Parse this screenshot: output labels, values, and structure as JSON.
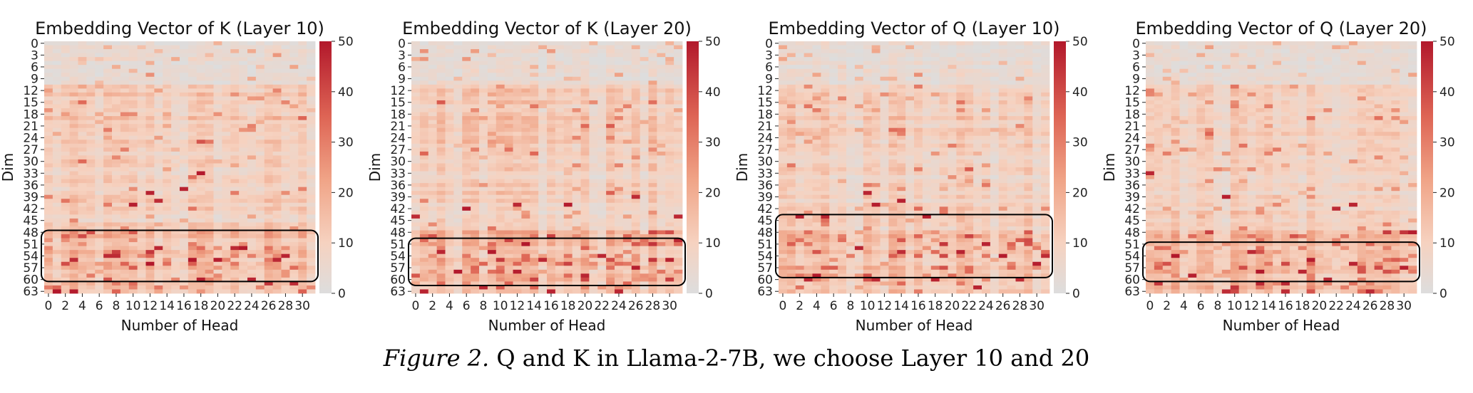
{
  "figure": {
    "caption_lead": "Figure 2.",
    "caption_text": " Q and K in Llama-2-7B, we choose Layer 10 and 20"
  },
  "colors": {
    "low": "#dddddd",
    "mid": "#f2c0a6",
    "high": "#b2182b",
    "box": "#000000"
  },
  "chart_data": [
    {
      "type": "heatmap",
      "title": "Embedding Vector of K (Layer 10)",
      "xlabel": "Number of Head",
      "ylabel": "Dim",
      "x_ticks": [
        "0",
        "2",
        "4",
        "6",
        "8",
        "10",
        "12",
        "14",
        "16",
        "18",
        "20",
        "22",
        "24",
        "26",
        "28",
        "30"
      ],
      "y_ticks": [
        "0",
        "3",
        "6",
        "9",
        "12",
        "15",
        "18",
        "21",
        "24",
        "27",
        "30",
        "33",
        "36",
        "39",
        "42",
        "45",
        "48",
        "51",
        "54",
        "57",
        "60",
        "63"
      ],
      "n_heads": 32,
      "n_dims": 64,
      "colorbar": {
        "min": 0,
        "max": 50,
        "ticks": [
          "0",
          "10",
          "20",
          "30",
          "40",
          "50"
        ]
      },
      "highlight_box": {
        "dim_range": [
          48,
          61
        ],
        "head_range": [
          0,
          31
        ]
      },
      "outliers": [
        [
          18,
          33
        ],
        [
          47,
          16
        ],
        [
          16,
          37
        ],
        [
          12,
          38
        ],
        [
          13,
          40
        ],
        [
          10,
          41
        ],
        [
          13,
          52
        ],
        [
          22,
          52
        ],
        [
          23,
          52
        ],
        [
          7,
          54
        ],
        [
          8,
          54
        ],
        [
          28,
          54
        ],
        [
          3,
          55
        ],
        [
          17,
          55
        ],
        [
          20,
          55
        ],
        [
          27,
          55
        ],
        [
          29,
          61
        ],
        [
          1,
          63
        ],
        [
          3,
          63
        ],
        [
          18,
          60
        ],
        [
          24,
          60
        ]
      ]
    },
    {
      "type": "heatmap",
      "title": "Embedding Vector of K (Layer 20)",
      "xlabel": "Number of Head",
      "ylabel": "Dim",
      "x_ticks": [
        "0",
        "2",
        "4",
        "6",
        "8",
        "10",
        "12",
        "14",
        "16",
        "18",
        "20",
        "22",
        "24",
        "26",
        "28",
        "30"
      ],
      "y_ticks": [
        "0",
        "3",
        "6",
        "9",
        "12",
        "15",
        "18",
        "21",
        "24",
        "27",
        "30",
        "33",
        "36",
        "39",
        "42",
        "45",
        "48",
        "51",
        "54",
        "57",
        "60",
        "63"
      ],
      "n_heads": 32,
      "n_dims": 64,
      "colorbar": {
        "min": 0,
        "max": 50,
        "ticks": [
          "0",
          "10",
          "20",
          "30",
          "40",
          "50"
        ]
      },
      "highlight_box": {
        "dim_range": [
          50,
          62
        ],
        "head_range": [
          0,
          31
        ]
      },
      "outliers": [
        [
          0,
          44
        ],
        [
          6,
          42
        ],
        [
          12,
          41
        ],
        [
          18,
          41
        ],
        [
          26,
          39
        ],
        [
          31,
          44
        ],
        [
          3,
          53
        ],
        [
          9,
          53
        ],
        [
          15,
          55
        ],
        [
          22,
          54
        ],
        [
          30,
          55
        ],
        [
          5,
          58
        ],
        [
          12,
          58
        ],
        [
          20,
          59
        ],
        [
          26,
          57
        ],
        [
          1,
          63
        ],
        [
          8,
          62
        ],
        [
          16,
          63
        ],
        [
          24,
          63
        ]
      ]
    },
    {
      "type": "heatmap",
      "title": "Embedding Vector of Q (Layer 10)",
      "xlabel": "Number of Head",
      "ylabel": "Dim",
      "x_ticks": [
        "0",
        "2",
        "4",
        "6",
        "8",
        "10",
        "12",
        "14",
        "16",
        "18",
        "20",
        "22",
        "24",
        "26",
        "28",
        "30"
      ],
      "y_ticks": [
        "0",
        "3",
        "6",
        "9",
        "12",
        "15",
        "18",
        "21",
        "24",
        "27",
        "30",
        "33",
        "36",
        "39",
        "42",
        "45",
        "48",
        "51",
        "54",
        "57",
        "60",
        "63"
      ],
      "n_heads": 32,
      "n_dims": 64,
      "colorbar": {
        "min": 0,
        "max": 50,
        "ticks": [
          "0",
          "10",
          "20",
          "30",
          "40",
          "50"
        ]
      },
      "highlight_box": {
        "dim_range": [
          44,
          60
        ],
        "head_range": [
          0,
          31
        ]
      },
      "outliers": [
        [
          2,
          44
        ],
        [
          5,
          44
        ],
        [
          10,
          38
        ],
        [
          11,
          41
        ],
        [
          14,
          40
        ],
        [
          17,
          44
        ],
        [
          9,
          52
        ],
        [
          14,
          53
        ],
        [
          21,
          53
        ],
        [
          24,
          51
        ],
        [
          26,
          54
        ],
        [
          31,
          54
        ],
        [
          3,
          60
        ],
        [
          11,
          60
        ],
        [
          18,
          60
        ],
        [
          23,
          62
        ],
        [
          28,
          60
        ]
      ]
    },
    {
      "type": "heatmap",
      "title": "Embedding Vector of Q (Layer 20)",
      "xlabel": "Number of Head",
      "ylabel": "Dim",
      "x_ticks": [
        "0",
        "2",
        "4",
        "6",
        "8",
        "10",
        "12",
        "14",
        "16",
        "18",
        "20",
        "22",
        "24",
        "26",
        "28",
        "30"
      ],
      "y_ticks": [
        "0",
        "3",
        "6",
        "9",
        "12",
        "15",
        "18",
        "21",
        "24",
        "27",
        "30",
        "33",
        "36",
        "39",
        "42",
        "45",
        "48",
        "51",
        "54",
        "57",
        "60",
        "63"
      ],
      "n_heads": 32,
      "n_dims": 64,
      "colorbar": {
        "min": 0,
        "max": 50,
        "ticks": [
          "0",
          "10",
          "20",
          "30",
          "40",
          "50"
        ]
      },
      "highlight_box": {
        "dim_range": [
          51,
          61
        ],
        "head_range": [
          0,
          31
        ]
      },
      "outliers": [
        [
          0,
          33
        ],
        [
          9,
          39
        ],
        [
          22,
          42
        ],
        [
          24,
          41
        ],
        [
          31,
          48
        ],
        [
          3,
          54
        ],
        [
          12,
          53
        ],
        [
          19,
          55
        ],
        [
          24,
          56
        ],
        [
          30,
          57
        ],
        [
          5,
          59
        ],
        [
          13,
          61
        ],
        [
          16,
          61
        ],
        [
          18,
          58
        ],
        [
          21,
          60
        ],
        [
          9,
          63
        ],
        [
          16,
          63
        ],
        [
          26,
          63
        ]
      ]
    }
  ]
}
